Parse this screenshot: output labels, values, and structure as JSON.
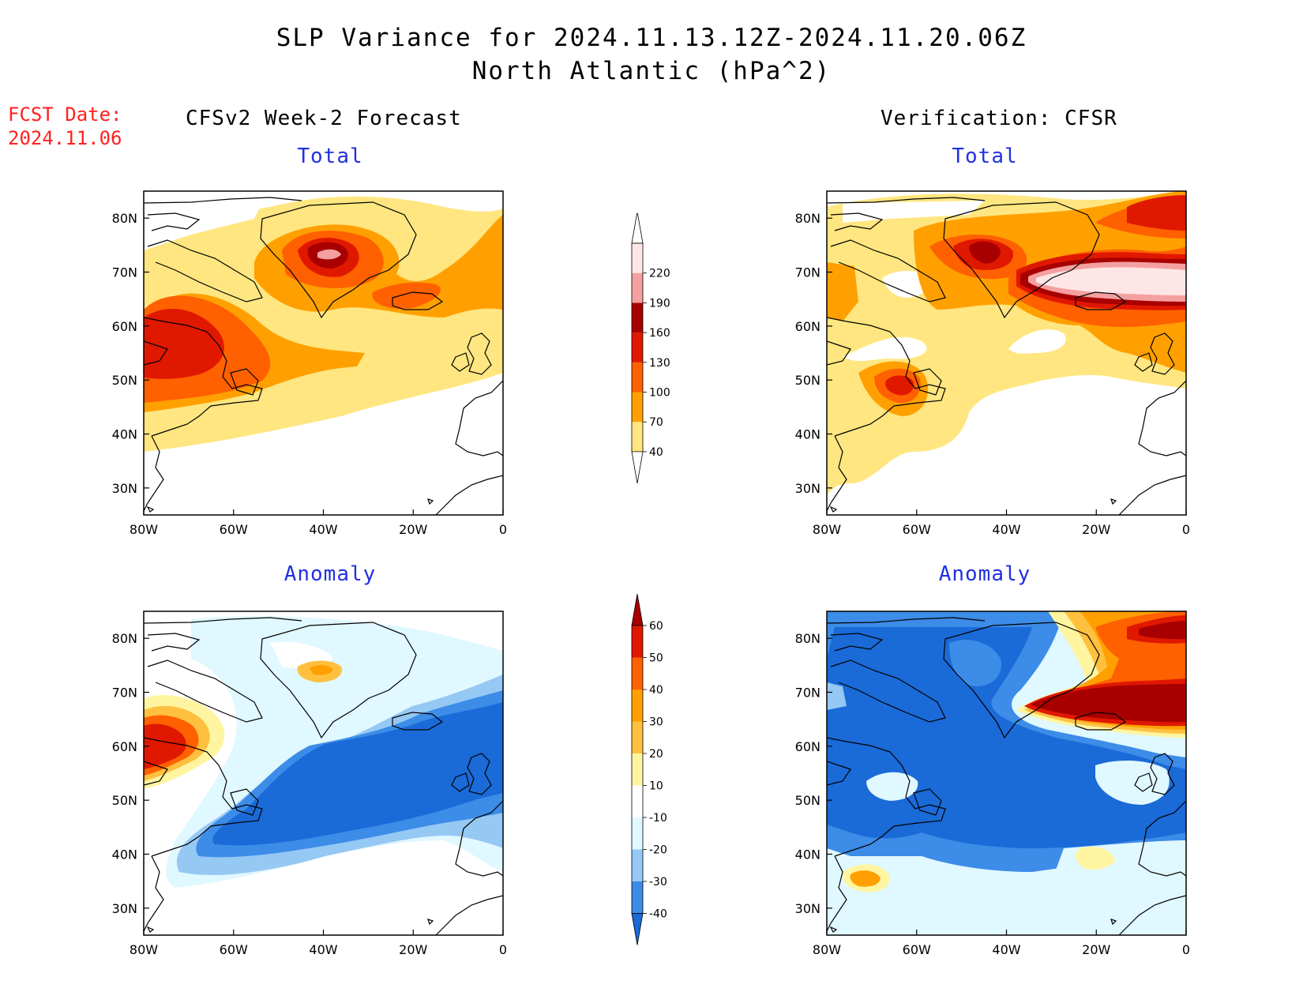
{
  "header": {
    "title_line1": "SLP Variance for 2024.11.13.12Z-2024.11.20.06Z",
    "title_line2": "North Atlantic (hPa^2)",
    "fcst_label": "FCST Date:",
    "fcst_date": "2024.11.06"
  },
  "columns": {
    "left": "CFSv2 Week-2 Forecast",
    "right": "Verification: CFSR"
  },
  "panels": {
    "fcst_total": "Total",
    "fcst_anomaly": "Anomaly",
    "verif_total": "Total",
    "verif_anomaly": "Anomaly"
  },
  "axes": {
    "lat_ticks": [
      "80N",
      "70N",
      "60N",
      "50N",
      "40N",
      "30N"
    ],
    "lon_ticks": [
      "80W",
      "60W",
      "40W",
      "20W",
      "0"
    ]
  },
  "colorbars": {
    "total": {
      "levels": [
        "40",
        "70",
        "100",
        "130",
        "160",
        "190",
        "220"
      ],
      "colors": [
        "#ffe680",
        "#ffa000",
        "#ff6000",
        "#e01800",
        "#a80000",
        "#f4a0a0",
        "#ffe6e6"
      ]
    },
    "anomaly": {
      "levels": [
        "-40",
        "-30",
        "-20",
        "-10",
        "10",
        "20",
        "30",
        "40",
        "50",
        "60"
      ],
      "colors": [
        "#1a6ad8",
        "#3c8ce8",
        "#96c8f4",
        "#e0f8ff",
        "#ffffff",
        "#fff5a0",
        "#ffc040",
        "#ffa000",
        "#ff6000",
        "#e01800",
        "#a80000"
      ]
    }
  }
}
